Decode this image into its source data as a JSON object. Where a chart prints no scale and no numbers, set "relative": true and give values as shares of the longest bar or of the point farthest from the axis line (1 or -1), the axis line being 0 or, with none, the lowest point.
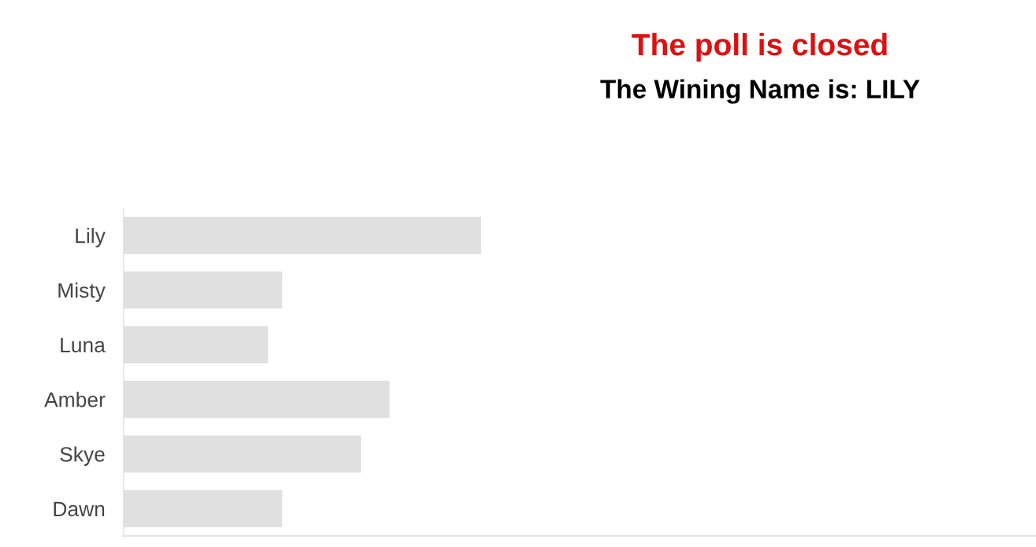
{
  "chart_data": {
    "type": "bar",
    "orientation": "horizontal",
    "relative": true,
    "title": "The poll is closed",
    "subtitle": "The Wining Name is: LILY",
    "categories": [
      "Lily",
      "Misty",
      "Luna",
      "Amber",
      "Skye",
      "Dawn"
    ],
    "values": [
      1,
      0.445,
      0.405,
      0.745,
      0.665,
      0.445
    ],
    "color": "#e0e0e0"
  }
}
